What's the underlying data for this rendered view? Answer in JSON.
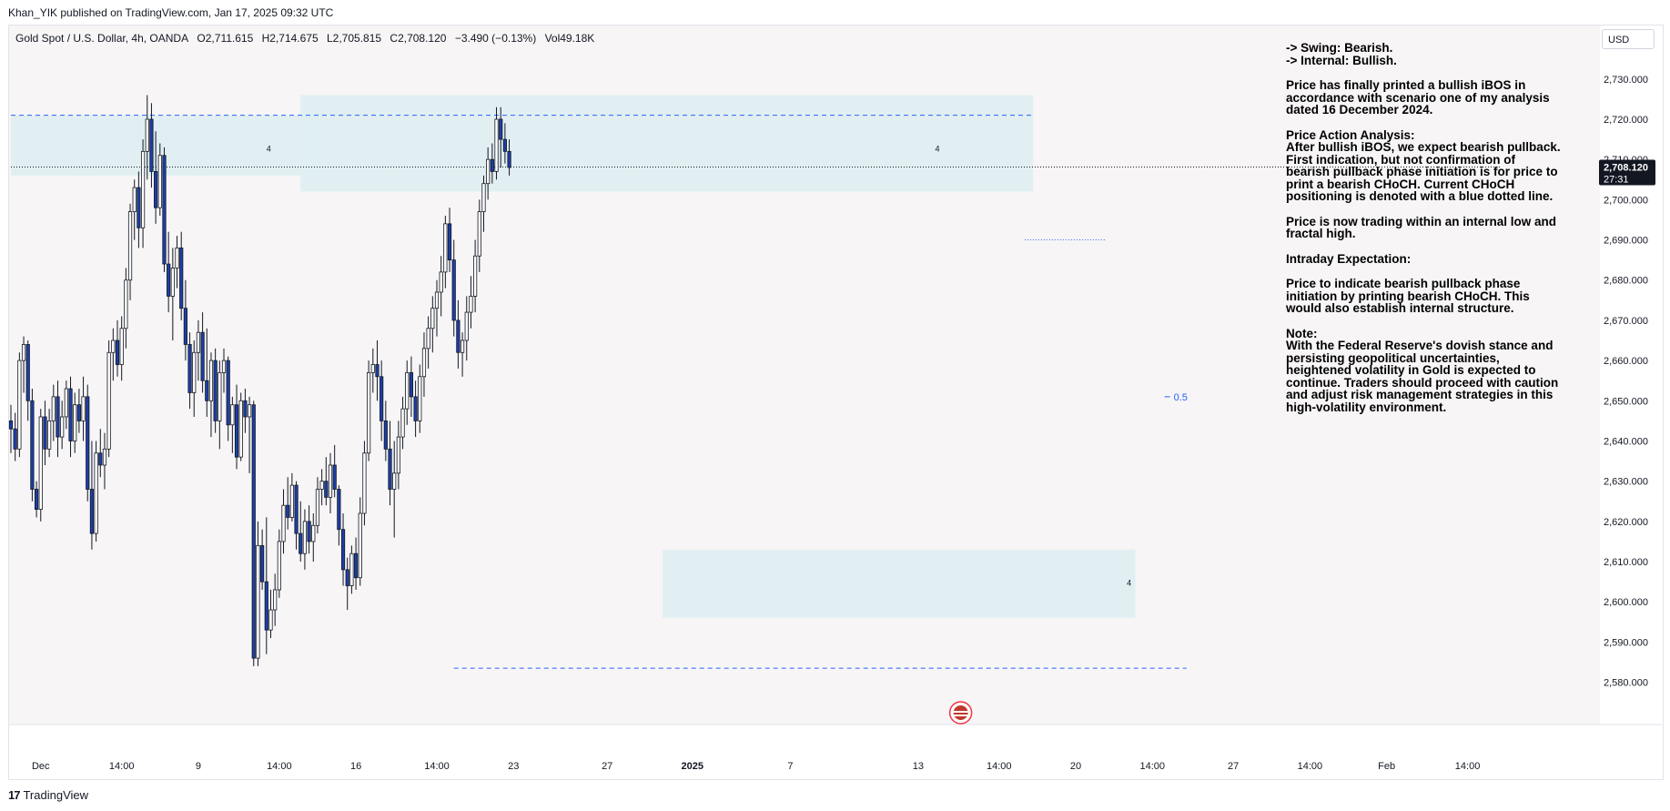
{
  "header": {
    "published": "Khan_YIK published on TradingView.com, Jan 17, 2025 09:32 UTC"
  },
  "symbol": {
    "name": "Gold Spot / U.S. Dollar, 4h, OANDA",
    "open": "O2,711.615",
    "high": "H2,714.675",
    "low": "L2,705.815",
    "close": "C2,708.120",
    "change": "−3.490 (−0.13%)",
    "volume": "Vol49.18K"
  },
  "currency_button": "USD",
  "price_tag": {
    "price": "2,708.120",
    "countdown": "27:31"
  },
  "fib_label": "0.5",
  "block_labels": {
    "top_left": "4",
    "top_right": "4",
    "bottom": "4"
  },
  "annotation": {
    "swing": "-> Swing:  Bearish.",
    "internal": "-> Internal:  Bullish.",
    "p1": [
      "Price has finally printed a bullish iBOS in",
      "accordance with scenario one of my analysis",
      "dated 16 December 2024."
    ],
    "p2": [
      "Price Action Analysis:",
      "After bullish iBOS, we expect bearish pullback.",
      "First indication, but not confirmation of",
      "bearish pullback phase initiation is for price to",
      "print a bearish CHoCH.  Current CHoCH",
      "positioning is denoted with a blue dotted line."
    ],
    "p3": [
      "Price is now trading within an internal low and",
      "fractal high."
    ],
    "p4": [
      "Intraday Expectation:"
    ],
    "p5": [
      "Price to indicate bearish pullback phase",
      "initiation by printing bearish CHoCH.  This",
      "would also establish internal structure."
    ],
    "p6": [
      "Note:",
      "With the Federal Reserve's dovish stance and",
      "persisting geopolitical uncertainties,",
      "heightened volatility in Gold is expected to",
      "continue. Traders should proceed with caution",
      "and adjust risk management strategies in this",
      "high-volatility environment."
    ]
  },
  "footer": {
    "brand": "TradingView",
    "logo_mark": "17"
  },
  "colors": {
    "bull_body": "#ffffff",
    "bear_body": "#1c3fa8",
    "wick": "#131722",
    "zone": "#dfeef2",
    "level_line": "#2962ff",
    "price_tag_bg": "#131722"
  },
  "chart_data": {
    "type": "candlestick",
    "symbol": "XAUUSD",
    "timeframe": "4h",
    "ylim": [
      2574,
      2736
    ],
    "y_ticks": [
      2730,
      2720,
      2710,
      2700,
      2690,
      2680,
      2670,
      2660,
      2650,
      2640,
      2630,
      2620,
      2610,
      2600,
      2590,
      2580
    ],
    "y_tick_labels": [
      "2,730.000",
      "2,720.000",
      "2,710.000",
      "2,700.000",
      "2,690.000",
      "2,680.000",
      "2,670.000",
      "2,660.000",
      "2,650.000",
      "2,640.000",
      "2,630.000",
      "2,620.000",
      "2,610.000",
      "2,600.000",
      "2,590.000",
      "2,580.000"
    ],
    "x_ticks": [
      {
        "label": "Dec",
        "bar": 7
      },
      {
        "label": "14:00",
        "bar": 26
      },
      {
        "label": "9",
        "bar": 44
      },
      {
        "label": "14:00",
        "bar": 63
      },
      {
        "label": "16",
        "bar": 81
      },
      {
        "label": "14:00",
        "bar": 100
      },
      {
        "label": "23",
        "bar": 118
      },
      {
        "label": "27",
        "bar": 140
      },
      {
        "label": "2025",
        "bar": 160,
        "bold": true
      },
      {
        "label": "7",
        "bar": 183
      },
      {
        "label": "13",
        "bar": 213
      },
      {
        "label": "14:00",
        "bar": 232
      },
      {
        "label": "20",
        "bar": 250
      },
      {
        "label": "14:00",
        "bar": 268
      },
      {
        "label": "27",
        "bar": 287
      },
      {
        "label": "14:00",
        "bar": 305
      },
      {
        "label": "Feb",
        "bar": 323
      },
      {
        "label": "14:00",
        "bar": 342
      }
    ],
    "zones": [
      {
        "from_bar": 0,
        "to_bar": 71,
        "top": 2721,
        "bottom": 2706
      },
      {
        "from_bar": 68,
        "to_bar": 240,
        "top": 2726,
        "bottom": 2702
      },
      {
        "from_bar": 153,
        "to_bar": 264,
        "top": 2613,
        "bottom": 2596
      }
    ],
    "levels": [
      {
        "name": "range-high",
        "price": 2721,
        "from_bar": 0,
        "to_bar": 240,
        "style": "dashed"
      },
      {
        "name": "range-low",
        "price": 2583.5,
        "from_bar": 104,
        "to_bar": 276,
        "style": "dashed"
      },
      {
        "name": "choch",
        "price": 2690,
        "from_bar": 238,
        "to_bar": 257,
        "style": "dotted"
      },
      {
        "name": "last-price",
        "price": 2708.12,
        "from_bar": 0,
        "to_bar": 350,
        "style": "dotted"
      }
    ],
    "fib_level": {
      "value": 0.5,
      "price": 2651,
      "bar": 273
    },
    "candles": [
      [
        2645,
        2649,
        2637,
        2643
      ],
      [
        2643,
        2647,
        2635,
        2638
      ],
      [
        2638,
        2662,
        2636,
        2660
      ],
      [
        2660,
        2666,
        2652,
        2664
      ],
      [
        2664,
        2665,
        2645,
        2650
      ],
      [
        2650,
        2653,
        2625,
        2628
      ],
      [
        2628,
        2630,
        2621,
        2623
      ],
      [
        2623,
        2648,
        2620,
        2646
      ],
      [
        2646,
        2650,
        2634,
        2638
      ],
      [
        2638,
        2648,
        2636,
        2645
      ],
      [
        2645,
        2654,
        2640,
        2651
      ],
      [
        2651,
        2655,
        2636,
        2641
      ],
      [
        2641,
        2650,
        2638,
        2646
      ],
      [
        2646,
        2655,
        2643,
        2653
      ],
      [
        2653,
        2656,
        2636,
        2640
      ],
      [
        2640,
        2652,
        2637,
        2649
      ],
      [
        2649,
        2653,
        2642,
        2645
      ],
      [
        2645,
        2656,
        2640,
        2651
      ],
      [
        2651,
        2654,
        2625,
        2628
      ],
      [
        2628,
        2640,
        2613,
        2617
      ],
      [
        2617,
        2640,
        2615,
        2637
      ],
      [
        2637,
        2643,
        2631,
        2634
      ],
      [
        2634,
        2642,
        2628,
        2638
      ],
      [
        2638,
        2665,
        2636,
        2662
      ],
      [
        2662,
        2668,
        2655,
        2665
      ],
      [
        2665,
        2670,
        2656,
        2659
      ],
      [
        2659,
        2671,
        2655,
        2668
      ],
      [
        2668,
        2683,
        2663,
        2680
      ],
      [
        2680,
        2699,
        2675,
        2697
      ],
      [
        2697,
        2705,
        2690,
        2703
      ],
      [
        2703,
        2707,
        2688,
        2693
      ],
      [
        2693,
        2715,
        2688,
        2712
      ],
      [
        2712,
        2726,
        2705,
        2720
      ],
      [
        2720,
        2724,
        2703,
        2707
      ],
      [
        2707,
        2717,
        2694,
        2698
      ],
      [
        2698,
        2714,
        2696,
        2711
      ],
      [
        2711,
        2713,
        2682,
        2684
      ],
      [
        2684,
        2692,
        2672,
        2676
      ],
      [
        2676,
        2688,
        2665,
        2683
      ],
      [
        2683,
        2691,
        2678,
        2688
      ],
      [
        2688,
        2692,
        2670,
        2673
      ],
      [
        2673,
        2680,
        2660,
        2664
      ],
      [
        2664,
        2667,
        2648,
        2652
      ],
      [
        2652,
        2665,
        2646,
        2662
      ],
      [
        2662,
        2670,
        2655,
        2667
      ],
      [
        2667,
        2672,
        2652,
        2655
      ],
      [
        2655,
        2668,
        2646,
        2650
      ],
      [
        2650,
        2662,
        2641,
        2660
      ],
      [
        2660,
        2663,
        2642,
        2645
      ],
      [
        2645,
        2660,
        2638,
        2657
      ],
      [
        2657,
        2663,
        2652,
        2660
      ],
      [
        2660,
        2661,
        2640,
        2644
      ],
      [
        2644,
        2651,
        2637,
        2649
      ],
      [
        2649,
        2654,
        2633,
        2636
      ],
      [
        2636,
        2652,
        2635,
        2650
      ],
      [
        2650,
        2653,
        2642,
        2646
      ],
      [
        2646,
        2651,
        2632,
        2649
      ],
      [
        2649,
        2650,
        2584,
        2586
      ],
      [
        2586,
        2620,
        2584,
        2614
      ],
      [
        2614,
        2618,
        2603,
        2605
      ],
      [
        2605,
        2621,
        2587,
        2593
      ],
      [
        2593,
        2603,
        2591,
        2598
      ],
      [
        2598,
        2607,
        2594,
        2603
      ],
      [
        2603,
        2618,
        2601,
        2615
      ],
      [
        2615,
        2628,
        2612,
        2624
      ],
      [
        2624,
        2631,
        2618,
        2621
      ],
      [
        2621,
        2632,
        2620,
        2629
      ],
      [
        2629,
        2630,
        2613,
        2617
      ],
      [
        2617,
        2625,
        2610,
        2612
      ],
      [
        2612,
        2623,
        2608,
        2620
      ],
      [
        2620,
        2624,
        2612,
        2615
      ],
      [
        2615,
        2622,
        2610,
        2619
      ],
      [
        2619,
        2631,
        2617,
        2628
      ],
      [
        2628,
        2633,
        2624,
        2630
      ],
      [
        2630,
        2636,
        2624,
        2626
      ],
      [
        2626,
        2637,
        2622,
        2634
      ],
      [
        2634,
        2639,
        2626,
        2628
      ],
      [
        2628,
        2629,
        2614,
        2618
      ],
      [
        2618,
        2622,
        2604,
        2608
      ],
      [
        2608,
        2611,
        2598,
        2604
      ],
      [
        2604,
        2614,
        2602,
        2612
      ],
      [
        2612,
        2616,
        2603,
        2606
      ],
      [
        2606,
        2626,
        2604,
        2622
      ],
      [
        2622,
        2640,
        2619,
        2637
      ],
      [
        2637,
        2660,
        2635,
        2657
      ],
      [
        2657,
        2663,
        2652,
        2659
      ],
      [
        2659,
        2665,
        2650,
        2656
      ],
      [
        2656,
        2660,
        2640,
        2645
      ],
      [
        2645,
        2650,
        2635,
        2638
      ],
      [
        2638,
        2645,
        2624,
        2628
      ],
      [
        2628,
        2640,
        2616,
        2632
      ],
      [
        2632,
        2645,
        2628,
        2641
      ],
      [
        2641,
        2651,
        2638,
        2648
      ],
      [
        2648,
        2660,
        2644,
        2657
      ],
      [
        2657,
        2661,
        2646,
        2651
      ],
      [
        2651,
        2655,
        2641,
        2645
      ],
      [
        2645,
        2659,
        2642,
        2656
      ],
      [
        2656,
        2667,
        2651,
        2663
      ],
      [
        2663,
        2671,
        2658,
        2668
      ],
      [
        2668,
        2676,
        2662,
        2673
      ],
      [
        2673,
        2680,
        2666,
        2677
      ],
      [
        2677,
        2686,
        2671,
        2682
      ],
      [
        2682,
        2696,
        2678,
        2694
      ],
      [
        2694,
        2698,
        2682,
        2685
      ],
      [
        2685,
        2690,
        2666,
        2670
      ],
      [
        2670,
        2675,
        2658,
        2662
      ],
      [
        2662,
        2667,
        2656,
        2665
      ],
      [
        2665,
        2676,
        2660,
        2672
      ],
      [
        2672,
        2681,
        2668,
        2676
      ],
      [
        2676,
        2690,
        2672,
        2686
      ],
      [
        2686,
        2700,
        2682,
        2697
      ],
      [
        2697,
        2706,
        2692,
        2704
      ],
      [
        2704,
        2713,
        2700,
        2710
      ],
      [
        2710,
        2714,
        2704,
        2707
      ],
      [
        2707,
        2723,
        2705,
        2720
      ],
      [
        2720,
        2723,
        2708,
        2715
      ],
      [
        2715,
        2719,
        2709,
        2712
      ],
      [
        2712,
        2715,
        2706,
        2708
      ]
    ]
  }
}
